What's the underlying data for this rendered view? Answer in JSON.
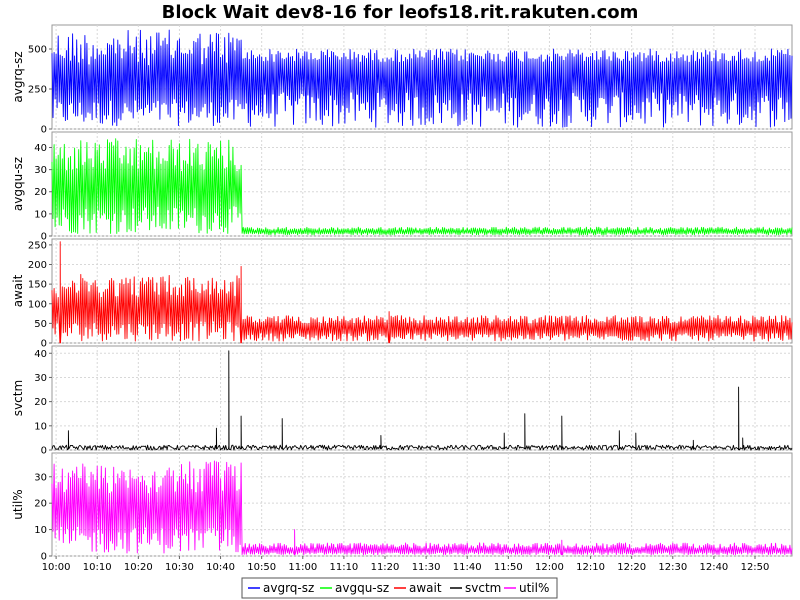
{
  "chart_data": {
    "type": "line",
    "title": "Block Wait dev8-16 for leofs18.rit.rakuten.com",
    "x_tick_labels": [
      "10:00",
      "10:10",
      "10:20",
      "10:30",
      "10:40",
      "10:50",
      "11:00",
      "11:10",
      "11:20",
      "11:30",
      "11:40",
      "11:50",
      "12:00",
      "12:10",
      "12:20",
      "12:30",
      "12:40",
      "12:50"
    ],
    "x_range": [
      "09:59",
      "12:59"
    ],
    "grid": true,
    "legend_placement": "bottom-center",
    "panels": [
      {
        "ylabel": "avgrq-sz",
        "color": "#0000ff",
        "ylim": [
          0,
          650
        ],
        "yticks": [
          0,
          250,
          500
        ],
        "segments": [
          {
            "from": "09:59",
            "to": "10:45",
            "low": 20,
            "high": 620,
            "base": 300
          },
          {
            "from": "10:45",
            "to": "12:59",
            "low": 10,
            "high": 500,
            "base": 380
          }
        ],
        "spikes": []
      },
      {
        "ylabel": "avgqu-sz",
        "color": "#00ff00",
        "ylim": [
          0,
          47
        ],
        "yticks": [
          0,
          10,
          20,
          30,
          40
        ],
        "segments": [
          {
            "from": "09:59",
            "to": "10:45",
            "low": 1,
            "high": 44,
            "base": 22
          },
          {
            "from": "10:45",
            "to": "12:59",
            "low": 0.5,
            "high": 4,
            "base": 2
          }
        ],
        "spikes": []
      },
      {
        "ylabel": "await",
        "color": "#ff0000",
        "ylim": [
          0,
          265
        ],
        "yticks": [
          0,
          50,
          100,
          150,
          200,
          250
        ],
        "segments": [
          {
            "from": "09:59",
            "to": "10:45",
            "low": 5,
            "high": 175,
            "base": 90
          },
          {
            "from": "10:45",
            "to": "12:59",
            "low": 5,
            "high": 70,
            "base": 40
          }
        ],
        "spikes": [
          {
            "x": "10:01",
            "y": 258
          },
          {
            "x": "10:45",
            "y": 195
          },
          {
            "x": "11:21",
            "y": 80
          }
        ]
      },
      {
        "ylabel": "svctm",
        "color": "#000000",
        "ylim": [
          0,
          43
        ],
        "yticks": [
          0,
          10,
          20,
          30,
          40
        ],
        "segments": [
          {
            "from": "09:59",
            "to": "12:59",
            "low": 0,
            "high": 2,
            "base": 0.8
          }
        ],
        "spikes": [
          {
            "x": "10:03",
            "y": 8
          },
          {
            "x": "10:39",
            "y": 9
          },
          {
            "x": "10:42",
            "y": 41
          },
          {
            "x": "10:45",
            "y": 14
          },
          {
            "x": "10:55",
            "y": 13
          },
          {
            "x": "11:19",
            "y": 6
          },
          {
            "x": "11:49",
            "y": 7
          },
          {
            "x": "11:54",
            "y": 15
          },
          {
            "x": "12:03",
            "y": 14
          },
          {
            "x": "12:17",
            "y": 8
          },
          {
            "x": "12:21",
            "y": 7
          },
          {
            "x": "12:35",
            "y": 4
          },
          {
            "x": "12:46",
            "y": 26
          },
          {
            "x": "12:47",
            "y": 5
          }
        ]
      },
      {
        "ylabel": "util%",
        "color": "#ff00ff",
        "ylim": [
          0,
          39
        ],
        "yticks": [
          0,
          10,
          20,
          30
        ],
        "segments": [
          {
            "from": "09:59",
            "to": "10:45",
            "low": 1,
            "high": 36,
            "base": 18
          },
          {
            "from": "10:45",
            "to": "12:59",
            "low": 0.5,
            "high": 5,
            "base": 2
          }
        ],
        "spikes": [
          {
            "x": "10:58",
            "y": 10
          },
          {
            "x": "12:03",
            "y": 6
          }
        ]
      }
    ],
    "legend": [
      {
        "label": "avgrq-sz",
        "color": "#0000ff"
      },
      {
        "label": "avgqu-sz",
        "color": "#00ff00"
      },
      {
        "label": "await",
        "color": "#ff0000"
      },
      {
        "label": "svctm",
        "color": "#000000"
      },
      {
        "label": "util%",
        "color": "#ff00ff"
      }
    ]
  }
}
